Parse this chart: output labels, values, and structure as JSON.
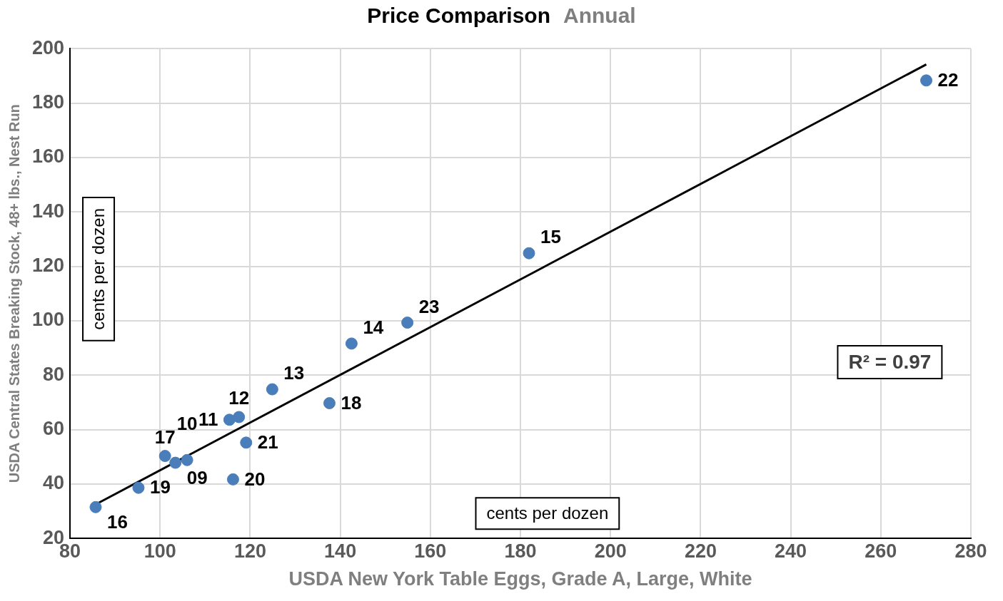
{
  "chart_data": {
    "type": "scatter",
    "title": "Price Comparison",
    "subtitle": "Annual",
    "xlabel": "USDA New York Table Eggs, Grade A, Large, White",
    "ylabel": "USDA Central States Breaking Stock, 48+ lbs., Nest Run",
    "xlim": [
      80,
      280
    ],
    "xticks": [
      80,
      100,
      120,
      140,
      160,
      180,
      200,
      220,
      240,
      260,
      280
    ],
    "ylim": [
      20,
      200
    ],
    "yticks": [
      20,
      40,
      60,
      80,
      100,
      120,
      140,
      160,
      180,
      200
    ],
    "grid": true,
    "legend": false,
    "marker": "circle",
    "series": [
      {
        "type": "scatter",
        "color": "#4a7ebb",
        "x": [
          85.7,
          95.2,
          101.1,
          103.4,
          106.0,
          115.4,
          117.5,
          119.1,
          116.2,
          124.9,
          137.6,
          142.5,
          154.9,
          181.9,
          270.1
        ],
        "values": [
          31.5,
          38.6,
          50.3,
          47.8,
          48.8,
          63.6,
          64.6,
          55.2,
          41.7,
          74.8,
          69.7,
          91.6,
          99.3,
          124.8,
          188.3
        ]
      },
      {
        "type": "line",
        "color": "#000000",
        "marker": "none",
        "x": [
          85.7,
          270.1
        ],
        "values": [
          32.5,
          194.2
        ]
      }
    ],
    "annotations": [
      {
        "text": "16",
        "x": 85.7,
        "y": 31.5
      },
      {
        "text": "19",
        "x": 95.2,
        "y": 38.6
      },
      {
        "text": "17",
        "x": 101.1,
        "y": 50.3
      },
      {
        "text": "09",
        "x": 103.4,
        "y": 47.8
      },
      {
        "text": "10",
        "x": 106.0,
        "y": 48.8
      },
      {
        "text": "11",
        "x": 115.4,
        "y": 63.6
      },
      {
        "text": "12",
        "x": 117.5,
        "y": 64.6
      },
      {
        "text": "21",
        "x": 119.1,
        "y": 55.2
      },
      {
        "text": "20",
        "x": 116.2,
        "y": 41.7
      },
      {
        "text": "13",
        "x": 124.9,
        "y": 74.8
      },
      {
        "text": "18",
        "x": 137.6,
        "y": 69.7
      },
      {
        "text": "14",
        "x": 142.5,
        "y": 91.6
      },
      {
        "text": "23",
        "x": 154.9,
        "y": 99.3
      },
      {
        "text": "15",
        "x": 181.9,
        "y": 124.8
      },
      {
        "text": "22",
        "x": 270.1,
        "y": 188.3
      },
      "cents per dozen",
      "cents per dozen",
      "R² = 0.97"
    ]
  }
}
